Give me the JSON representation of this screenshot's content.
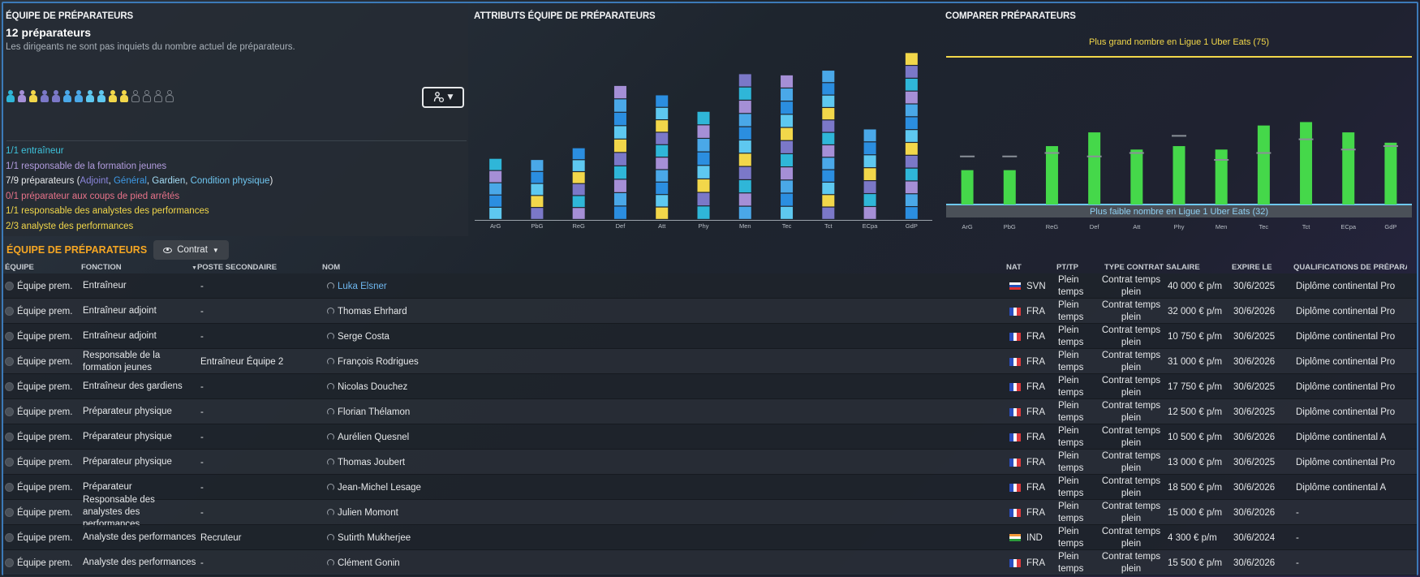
{
  "staff_panel": {
    "title": "ÉQUIPE DE PRÉPARATEURS",
    "count": "12 préparateurs",
    "description": "Les dirigeants ne sont pas inquiets du nombre actuel de préparateurs.",
    "people": [
      {
        "color": "#2fb6d8"
      },
      {
        "color": "#a58fd6"
      },
      {
        "color": "#f2d74a"
      },
      {
        "color": "#7b78c8"
      },
      {
        "color": "#7b78c8"
      },
      {
        "color": "#4aa8e8"
      },
      {
        "color": "#4aa8e8"
      },
      {
        "color": "#5ec8f0"
      },
      {
        "color": "#5ec8f0"
      },
      {
        "color": "#f2d74a"
      },
      {
        "color": "#f2d74a"
      },
      {
        "color": "empty"
      },
      {
        "color": "empty"
      },
      {
        "color": "empty"
      },
      {
        "color": "empty"
      }
    ],
    "roles": [
      {
        "text": "1/1 entraîneur",
        "color": "#3ec3dc"
      },
      {
        "text": "1/1 responsable de la formation jeunes",
        "color": "#b39ddf"
      },
      {
        "text": "0/1 préparateur aux coups de pied arrêtés",
        "color": "#e8738a"
      },
      {
        "text": "1/1 responsable des analystes des performances",
        "color": "#f2d74a"
      },
      {
        "text": "2/3 analyste des performances",
        "color": "#f2d74a"
      }
    ],
    "role_prep": {
      "prefix": "7/9 préparateurs (",
      "adjoint": "Adjoint",
      "sep1": ", ",
      "general": "Général",
      "sep2": ", ",
      "gardien": "Gardien",
      "sep3": ", ",
      "condition": "Condition physique",
      "suffix": ")"
    }
  },
  "attributes_chart": {
    "title": "ATTRIBUTS ÉQUIPE DE PRÉPARATEURS"
  },
  "compare_chart": {
    "title": "COMPARER PRÉPARATEURS",
    "max_label": "Plus grand nombre en Ligue 1 Uber Eats (75)",
    "min_label": "Plus faible nombre en Ligue 1 Uber Eats (32)"
  },
  "chart_data": [
    {
      "type": "bar",
      "title": "ATTRIBUTS ÉQUIPE DE PRÉPARATEURS",
      "categories": [
        "ArG",
        "PbG",
        "ReG",
        "Def",
        "Att",
        "Phy",
        "Men",
        "Tec",
        "Tct",
        "ECpa",
        "GdP"
      ],
      "values": [
        52,
        51,
        61,
        114,
        106,
        92,
        124,
        123,
        127,
        77,
        142
      ],
      "stacked": true,
      "colors": [
        "#5ec8f0",
        "#7b78c8",
        "#a58fd6",
        "#2b8ee0",
        "#f2d74a",
        "#2fb6d8",
        "#4aa8e8"
      ]
    },
    {
      "type": "bar",
      "title": "COMPARER PRÉPARATEURS",
      "categories": [
        "ArG",
        "PbG",
        "ReG",
        "Def",
        "Att",
        "Phy",
        "Men",
        "Tec",
        "Tct",
        "ECpa",
        "GdP"
      ],
      "values": [
        42,
        42,
        49,
        53,
        48,
        49,
        48,
        55,
        56,
        53,
        50
      ],
      "averages": [
        46,
        46,
        47,
        46,
        47,
        52,
        45,
        47,
        51,
        48,
        49
      ],
      "ylim": [
        32,
        75
      ],
      "bar_color": "#45d84a"
    }
  ],
  "table": {
    "title": "ÉQUIPE DE PRÉPARATEURS",
    "view_button": "Contrat",
    "columns": {
      "equipe": "ÉQUIPE",
      "fonction": "FONCTION",
      "poste": "POSTE SECONDAIRE",
      "nom": "NOM",
      "nat": "NAT",
      "pttp": "PT/TP",
      "type": "TYPE CONTRAT",
      "salaire": "SALAIRE",
      "expire": "EXPIRE LE",
      "qualif": "QUALIFICATIONS DE PRÉPARAT..."
    },
    "rows": [
      {
        "equipe": "Équipe prem.",
        "fonction": "Entraîneur",
        "poste": "-",
        "nom": "Luka Elsner",
        "nat": "SVN",
        "pttp": "Plein temps",
        "type": "Contrat temps plein",
        "salaire": "40 000 € p/m",
        "expire": "30/6/2025",
        "qualif": "Diplôme continental Pro"
      },
      {
        "equipe": "Équipe prem.",
        "fonction": "Entraîneur adjoint",
        "poste": "-",
        "nom": "Thomas Ehrhard",
        "nat": "FRA",
        "pttp": "Plein temps",
        "type": "Contrat temps plein",
        "salaire": "32 000 € p/m",
        "expire": "30/6/2026",
        "qualif": "Diplôme continental Pro"
      },
      {
        "equipe": "Équipe prem.",
        "fonction": "Entraîneur adjoint",
        "poste": "-",
        "nom": "Serge Costa",
        "nat": "FRA",
        "pttp": "Plein temps",
        "type": "Contrat temps plein",
        "salaire": "10 750 € p/m",
        "expire": "30/6/2025",
        "qualif": "Diplôme continental Pro"
      },
      {
        "equipe": "Équipe prem.",
        "fonction": "Responsable de la formation jeunes",
        "poste": "Entraîneur Équipe 2",
        "nom": "François Rodrigues",
        "nat": "FRA",
        "pttp": "Plein temps",
        "type": "Contrat temps plein",
        "salaire": "31 000 € p/m",
        "expire": "30/6/2026",
        "qualif": "Diplôme continental Pro"
      },
      {
        "equipe": "Équipe prem.",
        "fonction": "Entraîneur des gardiens",
        "poste": "-",
        "nom": "Nicolas Douchez",
        "nat": "FRA",
        "pttp": "Plein temps",
        "type": "Contrat temps plein",
        "salaire": "17 750 € p/m",
        "expire": "30/6/2025",
        "qualif": "Diplôme continental Pro"
      },
      {
        "equipe": "Équipe prem.",
        "fonction": "Préparateur physique",
        "poste": "-",
        "nom": "Florian Thélamon",
        "nat": "FRA",
        "pttp": "Plein temps",
        "type": "Contrat temps plein",
        "salaire": "12 500 € p/m",
        "expire": "30/6/2025",
        "qualif": "Diplôme continental Pro"
      },
      {
        "equipe": "Équipe prem.",
        "fonction": "Préparateur physique",
        "poste": "-",
        "nom": "Aurélien Quesnel",
        "nat": "FRA",
        "pttp": "Plein temps",
        "type": "Contrat temps plein",
        "salaire": "10 500 € p/m",
        "expire": "30/6/2026",
        "qualif": "Diplôme continental A"
      },
      {
        "equipe": "Équipe prem.",
        "fonction": "Préparateur physique",
        "poste": "-",
        "nom": "Thomas Joubert",
        "nat": "FRA",
        "pttp": "Plein temps",
        "type": "Contrat temps plein",
        "salaire": "13 000 € p/m",
        "expire": "30/6/2025",
        "qualif": "Diplôme continental Pro"
      },
      {
        "equipe": "Équipe prem.",
        "fonction": "Préparateur",
        "poste": "-",
        "nom": "Jean-Michel Lesage",
        "nat": "FRA",
        "pttp": "Plein temps",
        "type": "Contrat temps plein",
        "salaire": "18 500 € p/m",
        "expire": "30/6/2026",
        "qualif": "Diplôme continental A"
      },
      {
        "equipe": "Équipe prem.",
        "fonction": "Responsable des analystes des performances",
        "poste": "-",
        "nom": "Julien Momont",
        "nat": "FRA",
        "pttp": "Plein temps",
        "type": "Contrat temps plein",
        "salaire": "15 000 € p/m",
        "expire": "30/6/2026",
        "qualif": "-"
      },
      {
        "equipe": "Équipe prem.",
        "fonction": "Analyste des performances",
        "poste": "Recruteur",
        "nom": "Sutirth Mukherjee",
        "nat": "IND",
        "pttp": "Plein temps",
        "type": "Contrat temps plein",
        "salaire": "4 300 € p/m",
        "expire": "30/6/2024",
        "qualif": "-"
      },
      {
        "equipe": "Équipe prem.",
        "fonction": "Analyste des performances",
        "poste": "-",
        "nom": "Clément Gonin",
        "nat": "FRA",
        "pttp": "Plein temps",
        "type": "Contrat temps plein",
        "salaire": "15 500 € p/m",
        "expire": "30/6/2026",
        "qualif": "-"
      }
    ]
  }
}
